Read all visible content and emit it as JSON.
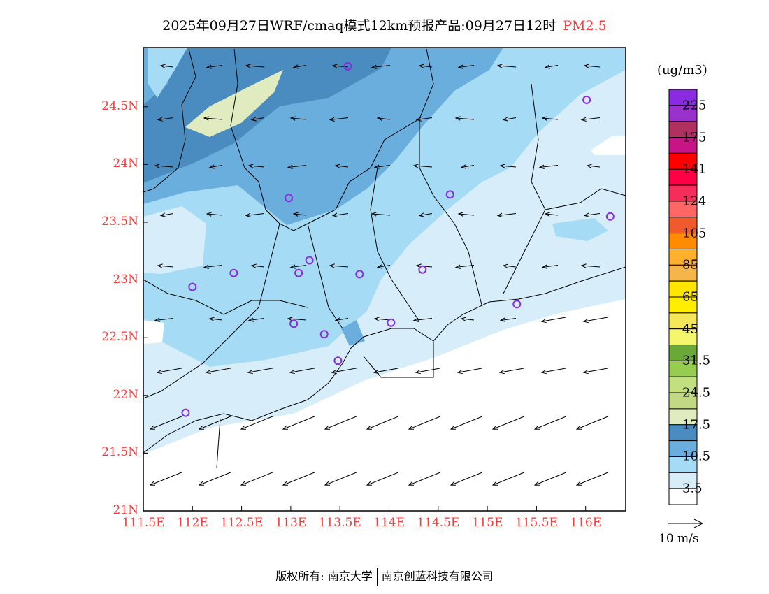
{
  "title": {
    "text": "2025年09月27日WRF/cmaq模式12km预报产品:09月27日12时",
    "variable": "PM2.5"
  },
  "axes": {
    "x_ticks": [
      "111.5E",
      "112E",
      "112.5E",
      "113E",
      "113.5E",
      "114E",
      "114.5E",
      "115E",
      "115.5E",
      "116E"
    ],
    "x_values": [
      111.5,
      112,
      112.5,
      113,
      113.5,
      114,
      114.5,
      115,
      115.5,
      116
    ],
    "y_ticks": [
      "21N",
      "21.5N",
      "22N",
      "22.5N",
      "23N",
      "23.5N",
      "24N",
      "24.5N"
    ],
    "y_values": [
      21,
      21.5,
      22,
      22.5,
      23,
      23.5,
      24,
      24.5
    ],
    "lon_range": [
      111.5,
      116.4
    ],
    "lat_range": [
      21,
      25.0
    ]
  },
  "colorbar": {
    "unit": "(ug/m3)",
    "colors": [
      "#8a2be2",
      "#9932cc",
      "#b03060",
      "#c71585",
      "#ff0000",
      "#ff0046",
      "#f52d5a",
      "#ff6666",
      "#f05a2d",
      "#ff8c00",
      "#ffb02d",
      "#f5b54b",
      "#ffe600",
      "#ffee00",
      "#f5e65a",
      "#f5f56e",
      "#6aa838",
      "#96cc50",
      "#c3e080",
      "#c2d882",
      "#e0ebc0",
      "#4a8cc0",
      "#6aaede",
      "#a5dbf5",
      "#d7eefa",
      "#ffffff"
    ],
    "labels": [
      "225",
      "175",
      "141",
      "124",
      "105",
      "85",
      "65",
      "45",
      "31.5",
      "24.5",
      "17.5",
      "10.5",
      "3.5"
    ]
  },
  "wind_legend": {
    "label": "10 m/s"
  },
  "stations": [
    {
      "lon": 113.58,
      "lat": 24.85
    },
    {
      "lon": 116.01,
      "lat": 24.56
    },
    {
      "lon": 112.98,
      "lat": 23.71
    },
    {
      "lon": 114.62,
      "lat": 23.74
    },
    {
      "lon": 116.25,
      "lat": 23.55
    },
    {
      "lon": 112.42,
      "lat": 23.06
    },
    {
      "lon": 112.0,
      "lat": 22.94
    },
    {
      "lon": 113.19,
      "lat": 23.17
    },
    {
      "lon": 113.08,
      "lat": 23.06
    },
    {
      "lon": 113.7,
      "lat": 23.05
    },
    {
      "lon": 114.34,
      "lat": 23.09
    },
    {
      "lon": 113.03,
      "lat": 22.62
    },
    {
      "lon": 113.34,
      "lat": 22.53
    },
    {
      "lon": 114.02,
      "lat": 22.63
    },
    {
      "lon": 113.48,
      "lat": 22.3
    },
    {
      "lon": 111.93,
      "lat": 21.85
    },
    {
      "lon": 115.3,
      "lat": 22.79
    }
  ],
  "colors": {
    "tick": "#ff3a3a",
    "station": "#8a2be2"
  },
  "footer": {
    "left": "版权所有: 南京大学",
    "right": "南京创蓝科技有限公司"
  }
}
